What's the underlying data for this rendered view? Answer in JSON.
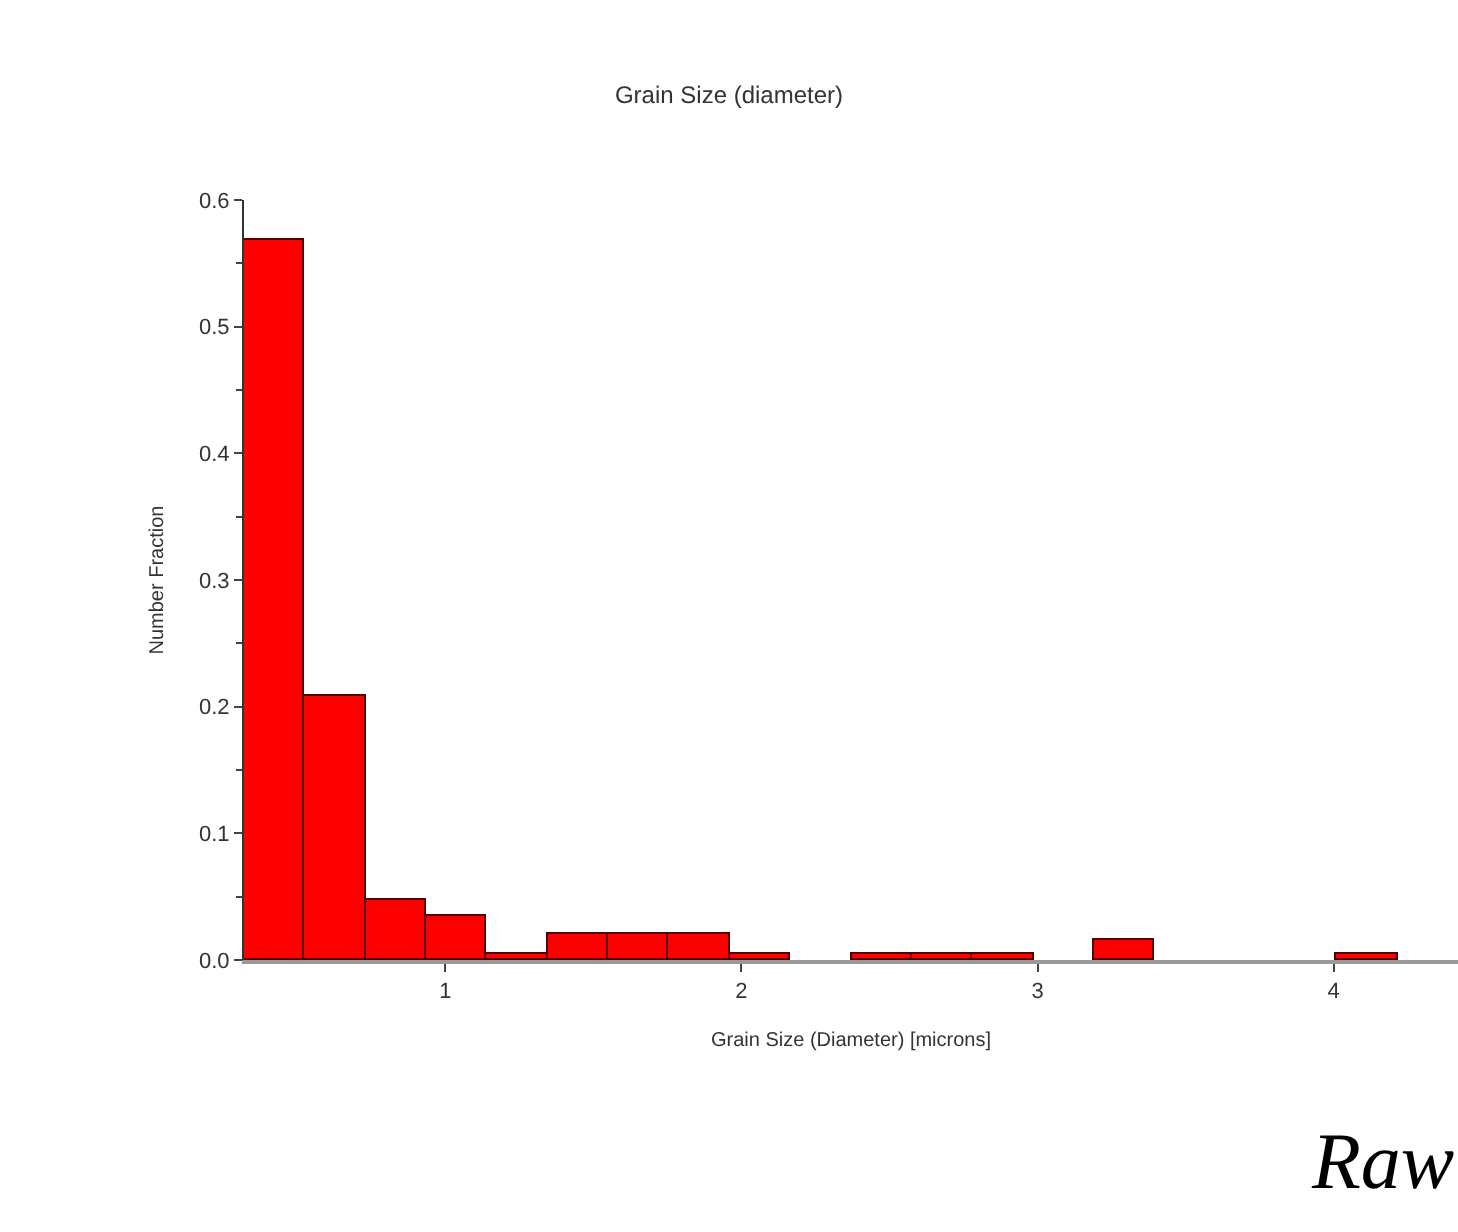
{
  "chart_data": {
    "type": "histogram",
    "title": "Grain Size (diameter)",
    "xlabel": "Grain Size (Diameter) [microns]",
    "ylabel": "Number Fraction",
    "bins": [
      0.32,
      0.525,
      0.73,
      0.935,
      1.14,
      1.345,
      1.55,
      1.755,
      1.96,
      2.165,
      2.37,
      2.575,
      2.78,
      2.985,
      3.19,
      3.395,
      3.6,
      3.805,
      4.01,
      4.215
    ],
    "values": [
      0.568,
      0.209,
      0.048,
      0.034,
      0.005,
      0.021,
      0.021,
      0.021,
      0.005,
      0,
      0.005,
      0.005,
      0.005,
      0,
      0.016,
      0,
      0,
      0,
      0.005
    ],
    "color": "#ff0000",
    "xlim": [
      0.32,
      4.42
    ],
    "xticks": [
      1,
      2,
      3,
      4
    ],
    "ylim": [
      0,
      0.6
    ],
    "yticks": [
      {
        "value": 0,
        "label": "0.0"
      },
      0.1,
      0.2,
      0.3,
      0.4,
      0.5,
      0.6
    ],
    "annotations": [
      "Raw"
    ]
  }
}
